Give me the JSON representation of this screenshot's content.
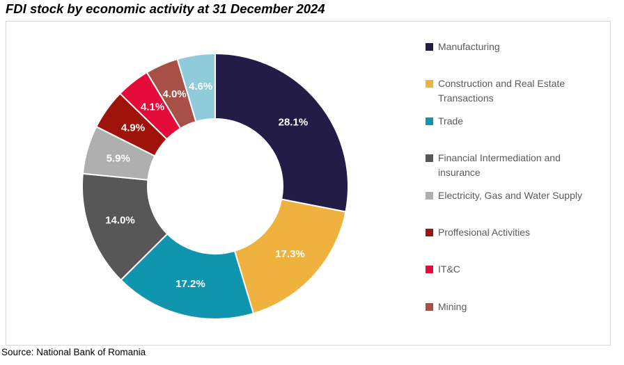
{
  "page": {
    "title": "FDI stock by economic activity at 31 December 2024",
    "source": "Source: National Bank of Romania"
  },
  "chart_data": {
    "type": "pie",
    "subtype": "donut",
    "title": "FDI stock by economic activity at 31 December 2024",
    "unit": "%",
    "start_angle_deg": 0,
    "direction": "clockwise",
    "legend_position": "right",
    "inner_radius_ratio": 0.51,
    "slices": [
      {
        "label": "Manufacturing",
        "value": 28.1,
        "color": "#221C46",
        "in_legend": true
      },
      {
        "label": "Construction and Real Estate Transactions",
        "value": 17.3,
        "color": "#F0B23F",
        "in_legend": true
      },
      {
        "label": "Trade",
        "value": 17.2,
        "color": "#1095AF",
        "in_legend": true
      },
      {
        "label": "Financial Intermediation and insurance",
        "value": 14.0,
        "color": "#575757",
        "in_legend": true
      },
      {
        "label": "Electricity, Gas and Water Supply",
        "value": 5.9,
        "color": "#AFAFAF",
        "in_legend": true
      },
      {
        "label": "Proffesional Activities",
        "value": 4.9,
        "color": "#9E130A",
        "in_legend": true
      },
      {
        "label": "IT&C",
        "value": 4.1,
        "color": "#E40A3A",
        "in_legend": true
      },
      {
        "label": "Mining",
        "value": 4.0,
        "color": "#A85046",
        "in_legend": true
      },
      {
        "label": "",
        "value": 4.6,
        "color": "#90CBDC",
        "in_legend": false
      }
    ],
    "data_labels": [
      "28.1%",
      "17.3%",
      "17.2%",
      "14.0%",
      "5.9%",
      "4.9%",
      "4.1%",
      "4.0%",
      "4.6%"
    ]
  }
}
